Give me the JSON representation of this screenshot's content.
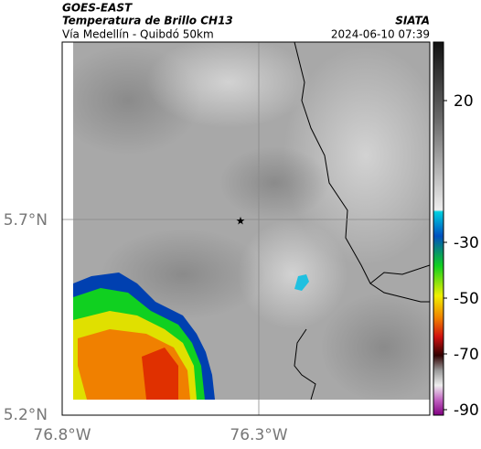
{
  "header": {
    "source": "GOES-EAST",
    "title": "Temperatura de Brillo CH13",
    "subtitle": "Vía Medellín - Quibdó 50km",
    "brand": "SIATA",
    "timestamp": "2024-06-10 07:39"
  },
  "map": {
    "lat_labels": [
      "5.7°N",
      "5.2°N"
    ],
    "lon_labels": [
      "76.8°W",
      "76.3°W"
    ]
  },
  "colorbar": {
    "labels": [
      "20",
      "-30",
      "-50",
      "-70",
      "-90"
    ]
  }
}
